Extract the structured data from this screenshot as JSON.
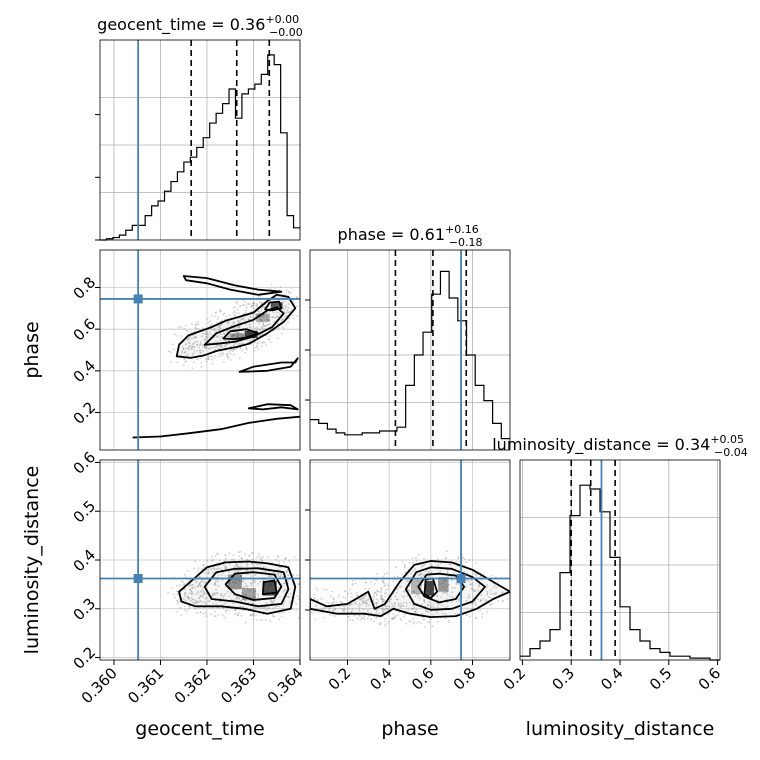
{
  "chart_data": {
    "type": "corner",
    "parameters": [
      "geocent_time",
      "phase",
      "luminosity_distance"
    ],
    "truths": {
      "geocent_time": 0.36052,
      "phase": 0.745,
      "luminosity_distance": 0.362
    },
    "truth_color": "#4682b4",
    "titles": [
      {
        "name": "geocent_time",
        "median": "0.36",
        "plus": "+0.00",
        "minus": "−0.00"
      },
      {
        "name": "phase",
        "median": "0.61",
        "plus": "+0.16",
        "minus": "−0.18"
      },
      {
        "name": "luminosity_distance",
        "median": "0.34",
        "plus": "+0.05",
        "minus": "−0.04"
      }
    ],
    "ranges": {
      "geocent_time": [
        0.3597,
        0.364
      ],
      "phase": [
        0.02,
        0.98
      ],
      "luminosity_distance": [
        0.195,
        0.605
      ]
    },
    "ticks": {
      "geocent_time": {
        "values": [
          0.36,
          0.361,
          0.362,
          0.363,
          0.364
        ],
        "labels": [
          "0.360",
          "0.361",
          "0.362",
          "0.363",
          "0.364"
        ]
      },
      "phase": {
        "values": [
          0.2,
          0.4,
          0.6,
          0.8
        ],
        "labels": [
          "0.2",
          "0.4",
          "0.6",
          "0.8"
        ]
      },
      "luminosity_distance": {
        "values": [
          0.2,
          0.3,
          0.4,
          0.5,
          0.6
        ],
        "labels": [
          "0.2",
          "0.3",
          "0.4",
          "0.5",
          "0.6"
        ]
      }
    },
    "histograms": {
      "geocent_time": {
        "quantiles": [
          0.36166,
          0.36264,
          0.36334
        ],
        "ymax": 0.78,
        "counts": [
          0.0,
          0.005,
          0.01,
          0.02,
          0.04,
          0.06,
          0.06,
          0.1,
          0.14,
          0.16,
          0.2,
          0.24,
          0.28,
          0.32,
          0.34,
          0.38,
          0.42,
          0.48,
          0.52,
          0.56,
          0.62,
          0.5,
          0.6,
          0.62,
          0.64,
          0.68,
          0.76,
          0.72,
          0.44,
          0.1,
          0.05
        ]
      },
      "phase": {
        "quantiles": [
          0.43,
          0.61,
          0.77
        ],
        "ymax": 1.0,
        "counts": [
          0.16,
          0.14,
          0.11,
          0.09,
          0.08,
          0.08,
          0.09,
          0.09,
          0.1,
          0.1,
          0.12,
          0.34,
          0.5,
          0.62,
          0.82,
          0.94,
          0.8,
          0.68,
          0.5,
          0.34,
          0.26,
          0.14,
          0.06
        ]
      },
      "luminosity_distance": {
        "quantiles": [
          0.3,
          0.34,
          0.39
        ],
        "ymax": 1.0,
        "counts": [
          0.02,
          0.06,
          0.1,
          0.16,
          0.46,
          0.76,
          0.92,
          0.9,
          0.78,
          0.54,
          0.28,
          0.16,
          0.1,
          0.06,
          0.04,
          0.02,
          0.02,
          0.01,
          0.01,
          0.0
        ]
      }
    },
    "contour_panels": [
      {
        "x": "geocent_time",
        "y": "phase",
        "levels": [
          [
            [
              0.36135,
              0.47
            ],
            [
              0.3614,
              0.525
            ],
            [
              0.3616,
              0.57
            ],
            [
              0.3621,
              0.61
            ],
            [
              0.3624,
              0.64
            ],
            [
              0.3627,
              0.66
            ],
            [
              0.363,
              0.68
            ],
            [
              0.3633,
              0.735
            ],
            [
              0.3635,
              0.765
            ],
            [
              0.36375,
              0.755
            ],
            [
              0.3639,
              0.7
            ],
            [
              0.36365,
              0.635
            ],
            [
              0.3633,
              0.58
            ],
            [
              0.3629,
              0.53
            ],
            [
              0.36265,
              0.515
            ],
            [
              0.3624,
              0.505
            ],
            [
              0.3622,
              0.495
            ],
            [
              0.36195,
              0.475
            ],
            [
              0.36165,
              0.462
            ]
          ],
          [
            [
              0.36195,
              0.525
            ],
            [
              0.3622,
              0.58
            ],
            [
              0.3626,
              0.615
            ],
            [
              0.363,
              0.645
            ],
            [
              0.3633,
              0.69
            ],
            [
              0.3635,
              0.705
            ],
            [
              0.36365,
              0.675
            ],
            [
              0.3634,
              0.61
            ],
            [
              0.363,
              0.565
            ],
            [
              0.3626,
              0.54
            ],
            [
              0.3622,
              0.53
            ]
          ],
          [
            [
              0.36235,
              0.555
            ],
            [
              0.3625,
              0.59
            ],
            [
              0.36285,
              0.6
            ],
            [
              0.3631,
              0.58
            ],
            [
              0.36285,
              0.56
            ],
            [
              0.3626,
              0.552
            ]
          ],
          [
            [
              0.36325,
              0.695
            ],
            [
              0.36335,
              0.728
            ],
            [
              0.36355,
              0.732
            ],
            [
              0.3636,
              0.7
            ],
            [
              0.3634,
              0.69
            ]
          ],
          [
            [
              0.3615,
              0.855
            ],
            [
              0.362,
              0.845
            ],
            [
              0.3626,
              0.81
            ],
            [
              0.3631,
              0.79
            ],
            [
              0.3636,
              0.78
            ],
            [
              0.3631,
              0.765
            ],
            [
              0.3625,
              0.79
            ],
            [
              0.362,
              0.82
            ],
            [
              0.36155,
              0.835
            ]
          ],
          [
            [
              0.3639,
              0.44
            ],
            [
              0.36395,
              0.46
            ],
            [
              0.3638,
              0.42
            ],
            [
              0.3633,
              0.4
            ],
            [
              0.3627,
              0.395
            ],
            [
              0.363,
              0.42
            ],
            [
              0.3636,
              0.44
            ]
          ],
          [
            [
              0.3629,
              0.22
            ],
            [
              0.3633,
              0.24
            ],
            [
              0.3638,
              0.235
            ],
            [
              0.36395,
              0.215
            ],
            [
              0.3636,
              0.225
            ],
            [
              0.3632,
              0.215
            ]
          ]
        ],
        "lines": [
          [
            [
              0.3604,
              0.08
            ],
            [
              0.361,
              0.085
            ],
            [
              0.3616,
              0.1
            ],
            [
              0.3623,
              0.12
            ],
            [
              0.3629,
              0.15
            ],
            [
              0.3635,
              0.17
            ],
            [
              0.364,
              0.18
            ]
          ]
        ],
        "points": [
          {
            "x": 0.36295,
            "y": 0.575,
            "w": 0.00028,
            "h": 0.035,
            "shade": 0.95
          },
          {
            "x": 0.3635,
            "y": 0.715,
            "w": 0.00025,
            "h": 0.03,
            "shade": 0.8
          },
          {
            "x": 0.36265,
            "y": 0.565,
            "w": 0.0003,
            "h": 0.03,
            "shade": 0.5
          },
          {
            "x": 0.3632,
            "y": 0.655,
            "w": 0.0003,
            "h": 0.04,
            "shade": 0.4
          }
        ]
      },
      {
        "x": "geocent_time",
        "y": "luminosity_distance",
        "levels": [
          [
            [
              0.3614,
              0.335
            ],
            [
              0.3617,
              0.36
            ],
            [
              0.362,
              0.385
            ],
            [
              0.3624,
              0.395
            ],
            [
              0.3629,
              0.397
            ],
            [
              0.3633,
              0.393
            ],
            [
              0.36375,
              0.385
            ],
            [
              0.3639,
              0.345
            ],
            [
              0.3638,
              0.3
            ],
            [
              0.3633,
              0.29
            ],
            [
              0.3628,
              0.3
            ],
            [
              0.3623,
              0.305
            ],
            [
              0.36175,
              0.305
            ],
            [
              0.36145,
              0.315
            ]
          ],
          [
            [
              0.36195,
              0.345
            ],
            [
              0.3622,
              0.375
            ],
            [
              0.3626,
              0.382
            ],
            [
              0.3631,
              0.383
            ],
            [
              0.36365,
              0.375
            ],
            [
              0.36375,
              0.34
            ],
            [
              0.3636,
              0.31
            ],
            [
              0.3631,
              0.305
            ],
            [
              0.3626,
              0.315
            ],
            [
              0.3621,
              0.32
            ]
          ],
          [
            [
              0.3624,
              0.35
            ],
            [
              0.3626,
              0.372
            ],
            [
              0.363,
              0.375
            ],
            [
              0.36345,
              0.37
            ],
            [
              0.3636,
              0.345
            ],
            [
              0.36345,
              0.322
            ],
            [
              0.363,
              0.318
            ],
            [
              0.3626,
              0.33
            ]
          ],
          [
            [
              0.3632,
              0.33
            ],
            [
              0.36322,
              0.355
            ],
            [
              0.36345,
              0.358
            ],
            [
              0.3635,
              0.333
            ]
          ]
        ],
        "lines": [],
        "points": [
          {
            "x": 0.36335,
            "y": 0.342,
            "w": 0.0003,
            "h": 0.03,
            "shade": 0.9
          },
          {
            "x": 0.3626,
            "y": 0.355,
            "w": 0.0003,
            "h": 0.03,
            "shade": 0.55
          },
          {
            "x": 0.3629,
            "y": 0.33,
            "w": 0.0003,
            "h": 0.025,
            "shade": 0.45
          }
        ]
      },
      {
        "x": "phase",
        "y": "luminosity_distance",
        "levels": [
          [
            [
              0.02,
              0.32
            ],
            [
              0.1,
              0.305
            ],
            [
              0.2,
              0.31
            ],
            [
              0.3,
              0.335
            ],
            [
              0.33,
              0.3
            ],
            [
              0.38,
              0.31
            ],
            [
              0.45,
              0.355
            ],
            [
              0.52,
              0.39
            ],
            [
              0.6,
              0.398
            ],
            [
              0.7,
              0.395
            ],
            [
              0.8,
              0.38
            ],
            [
              0.88,
              0.36
            ],
            [
              0.98,
              0.335
            ],
            [
              0.9,
              0.32
            ],
            [
              0.82,
              0.3
            ],
            [
              0.72,
              0.285
            ],
            [
              0.6,
              0.283
            ],
            [
              0.5,
              0.29
            ],
            [
              0.42,
              0.3
            ],
            [
              0.36,
              0.285
            ],
            [
              0.28,
              0.29
            ],
            [
              0.15,
              0.29
            ],
            [
              0.02,
              0.3
            ]
          ],
          [
            [
              0.48,
              0.34
            ],
            [
              0.53,
              0.375
            ],
            [
              0.6,
              0.385
            ],
            [
              0.7,
              0.382
            ],
            [
              0.8,
              0.365
            ],
            [
              0.86,
              0.345
            ],
            [
              0.8,
              0.315
            ],
            [
              0.7,
              0.3
            ],
            [
              0.6,
              0.298
            ],
            [
              0.52,
              0.31
            ]
          ],
          [
            [
              0.54,
              0.345
            ],
            [
              0.58,
              0.37
            ],
            [
              0.64,
              0.372
            ],
            [
              0.72,
              0.368
            ],
            [
              0.76,
              0.345
            ],
            [
              0.72,
              0.32
            ],
            [
              0.64,
              0.313
            ],
            [
              0.57,
              0.325
            ]
          ],
          [
            [
              0.57,
              0.33
            ],
            [
              0.575,
              0.36
            ],
            [
              0.61,
              0.362
            ],
            [
              0.63,
              0.335
            ],
            [
              0.6,
              0.322
            ]
          ]
        ],
        "lines": [],
        "points": [
          {
            "x": 0.595,
            "y": 0.342,
            "w": 0.04,
            "h": 0.03,
            "shade": 0.95
          },
          {
            "x": 0.66,
            "y": 0.35,
            "w": 0.05,
            "h": 0.03,
            "shade": 0.5
          },
          {
            "x": 0.53,
            "y": 0.345,
            "w": 0.05,
            "h": 0.03,
            "shade": 0.35
          }
        ]
      }
    ]
  }
}
